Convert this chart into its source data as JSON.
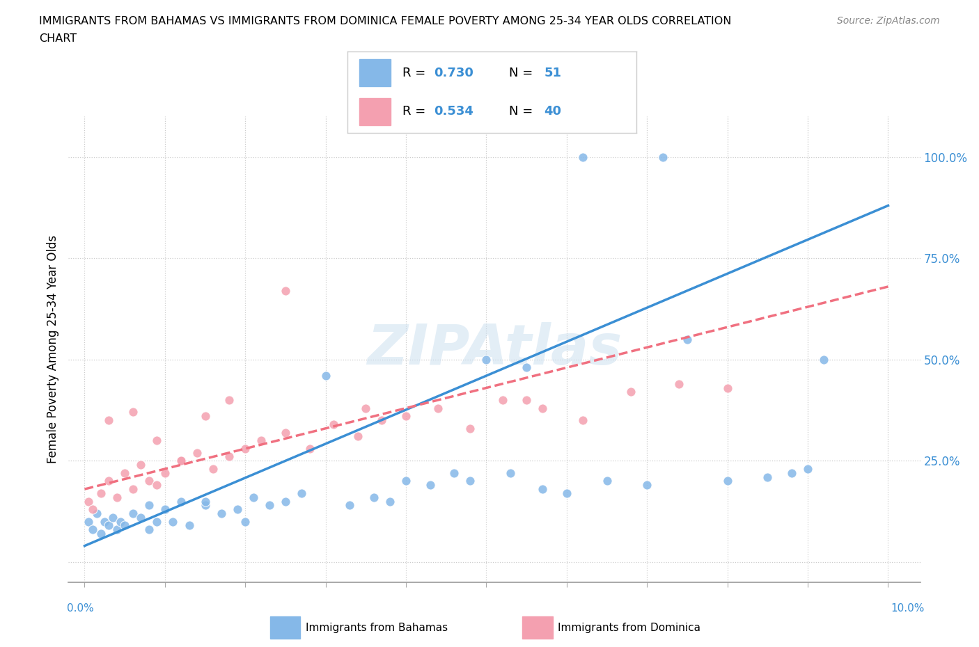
{
  "title_line1": "IMMIGRANTS FROM BAHAMAS VS IMMIGRANTS FROM DOMINICA FEMALE POVERTY AMONG 25-34 YEAR OLDS CORRELATION",
  "title_line2": "CHART",
  "source": "Source: ZipAtlas.com",
  "ylabel": "Female Poverty Among 25-34 Year Olds",
  "xlim_min": -0.002,
  "xlim_max": 0.104,
  "ylim_min": -0.05,
  "ylim_max": 1.1,
  "ytick_vals": [
    0.0,
    0.25,
    0.5,
    0.75,
    1.0
  ],
  "ytick_labels": [
    "",
    "25.0%",
    "50.0%",
    "75.0%",
    "100.0%"
  ],
  "bahamas_color": "#85b8e8",
  "dominica_color": "#f4a0b0",
  "bahamas_line_color": "#3b8fd4",
  "dominica_line_color": "#f07080",
  "text_blue": "#3b8fd4",
  "bahamas_R": "0.730",
  "bahamas_N": "51",
  "dominica_R": "0.534",
  "dominica_N": "40",
  "legend_label_bahamas": "Immigrants from Bahamas",
  "legend_label_dominica": "Immigrants from Dominica",
  "watermark": "ZIPAtlas",
  "bahamas_trend_y0": 0.04,
  "bahamas_trend_y1": 0.88,
  "dominica_trend_y0": 0.18,
  "dominica_trend_y1": 0.68,
  "bahamas_x": [
    0.0005,
    0.001,
    0.0015,
    0.002,
    0.0025,
    0.003,
    0.0035,
    0.004,
    0.0045,
    0.005,
    0.006,
    0.007,
    0.008,
    0.009,
    0.01,
    0.011,
    0.012,
    0.013,
    0.015,
    0.017,
    0.019,
    0.021,
    0.023,
    0.025,
    0.027,
    0.03,
    0.033,
    0.036,
    0.04,
    0.043,
    0.046,
    0.05,
    0.053,
    0.057,
    0.06,
    0.065,
    0.07,
    0.075,
    0.08,
    0.085,
    0.088,
    0.09,
    0.092,
    0.055,
    0.048,
    0.038,
    0.02,
    0.015,
    0.008,
    0.062,
    0.072
  ],
  "bahamas_y": [
    0.1,
    0.08,
    0.12,
    0.07,
    0.1,
    0.09,
    0.11,
    0.08,
    0.1,
    0.09,
    0.12,
    0.11,
    0.14,
    0.1,
    0.13,
    0.1,
    0.15,
    0.09,
    0.14,
    0.12,
    0.13,
    0.16,
    0.14,
    0.15,
    0.17,
    0.46,
    0.14,
    0.16,
    0.2,
    0.19,
    0.22,
    0.5,
    0.22,
    0.18,
    0.17,
    0.2,
    0.19,
    0.55,
    0.2,
    0.21,
    0.22,
    0.23,
    0.5,
    0.48,
    0.2,
    0.15,
    0.1,
    0.15,
    0.08,
    1.0,
    1.0
  ],
  "dominica_x": [
    0.0005,
    0.001,
    0.002,
    0.003,
    0.004,
    0.005,
    0.006,
    0.007,
    0.008,
    0.009,
    0.01,
    0.012,
    0.014,
    0.016,
    0.018,
    0.02,
    0.022,
    0.025,
    0.028,
    0.031,
    0.034,
    0.037,
    0.04,
    0.044,
    0.048,
    0.052,
    0.057,
    0.062,
    0.068,
    0.074,
    0.003,
    0.006,
    0.009,
    0.012,
    0.015,
    0.018,
    0.025,
    0.035,
    0.055,
    0.08
  ],
  "dominica_y": [
    0.15,
    0.13,
    0.17,
    0.2,
    0.16,
    0.22,
    0.18,
    0.24,
    0.2,
    0.19,
    0.22,
    0.25,
    0.27,
    0.23,
    0.26,
    0.28,
    0.3,
    0.32,
    0.28,
    0.34,
    0.31,
    0.35,
    0.36,
    0.38,
    0.33,
    0.4,
    0.38,
    0.35,
    0.42,
    0.44,
    0.35,
    0.37,
    0.3,
    0.25,
    0.36,
    0.4,
    0.67,
    0.38,
    0.4,
    0.43
  ]
}
